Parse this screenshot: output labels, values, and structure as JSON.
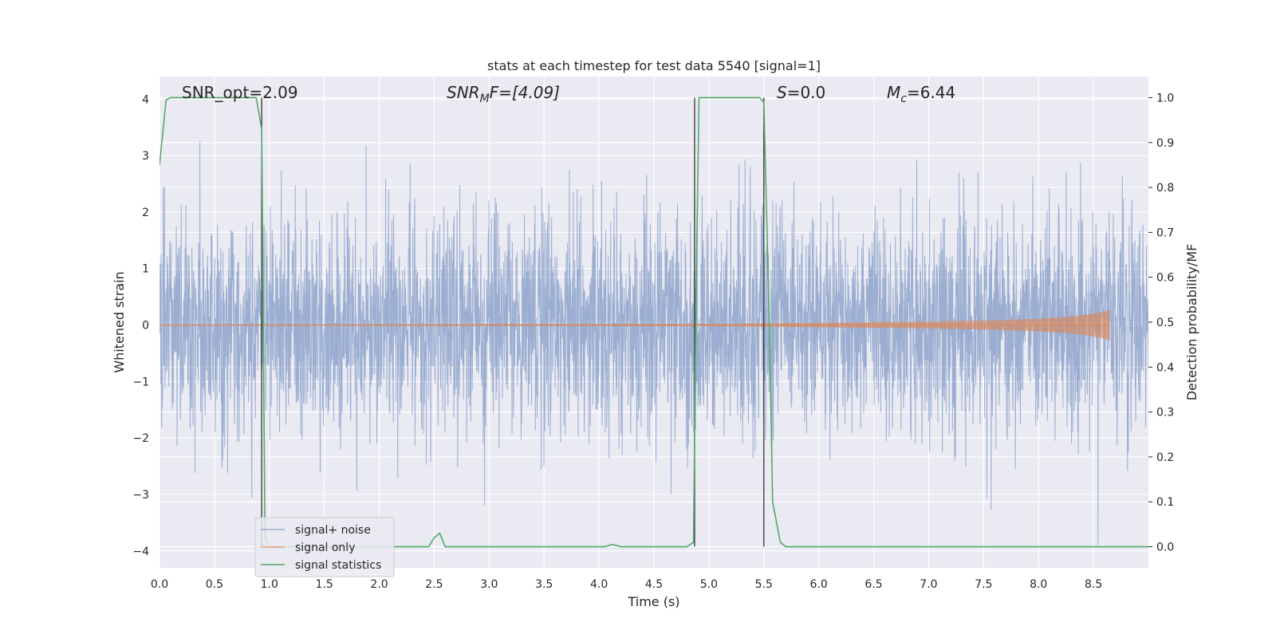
{
  "chart_data": {
    "type": "line",
    "title": "stats at each timestep for test data 5540 [signal=1]",
    "xlabel": "Time (s)",
    "ylabel": "Whitened strain",
    "ylabel_right": "Detection probability/MF",
    "xlim": [
      0,
      9.0
    ],
    "ylim": [
      -4.3,
      4.4
    ],
    "ylim_right": [
      -0.047,
      1.047
    ],
    "x_ticks": [
      "0.0",
      "0.5",
      "1.0",
      "1.5",
      "2.0",
      "2.5",
      "3.0",
      "3.5",
      "4.0",
      "4.5",
      "5.0",
      "5.5",
      "6.0",
      "6.5",
      "7.0",
      "7.5",
      "8.0",
      "8.5"
    ],
    "y_ticks": [
      "−4",
      "−3",
      "−2",
      "−1",
      "0",
      "1",
      "2",
      "3",
      "4"
    ],
    "y_ticks_right": [
      "0.0",
      "0.1",
      "0.2",
      "0.3",
      "0.4",
      "0.5",
      "0.6",
      "0.7",
      "0.8",
      "0.9",
      "1.0"
    ],
    "grid": true,
    "legend": {
      "position": "lower-left",
      "entries": [
        "signal+ noise",
        "signal only",
        "signal statistics"
      ]
    },
    "colors": {
      "signal_noise": "#4c72b0",
      "signal_only": "#dd8452",
      "signal_statistics": "#55a868",
      "vlines": "#333333",
      "plot_bg": "#eaeaf2",
      "grid": "#ffffff"
    },
    "annotations": {
      "snr_opt": "SNR_opt=2.09",
      "snr_mf_base": "SNR",
      "snr_mf_sub": "M",
      "snr_mf_rest": "F=[4.09]",
      "s_label_italic": "S",
      "s_label_rest": "=0.0",
      "mc_base": "M",
      "mc_sub": "c",
      "mc_rest": "=6.44"
    },
    "series": [
      {
        "name": "signal+ noise",
        "axis": "left",
        "description_envelope": {
          "typical_amplitude": 1.6,
          "max_peak": 3.6,
          "min_trough": -3.9
        }
      },
      {
        "name": "signal only",
        "axis": "left",
        "x": [
          0,
          5.0,
          6.0,
          7.0,
          7.5,
          8.0,
          8.3,
          8.5,
          8.6,
          8.65
        ],
        "envelope": [
          0.01,
          0.02,
          0.04,
          0.06,
          0.08,
          0.11,
          0.15,
          0.2,
          0.24,
          0.28
        ]
      },
      {
        "name": "signal statistics",
        "axis": "right",
        "x": [
          0.0,
          0.06,
          0.1,
          0.2,
          0.5,
          0.88,
          0.93,
          0.96,
          1.0,
          1.04,
          2.0,
          2.45,
          2.5,
          2.55,
          2.6,
          2.65,
          4.05,
          4.12,
          4.2,
          4.8,
          4.86,
          4.88,
          4.91,
          4.94,
          5.46,
          5.5,
          5.55,
          5.58,
          5.65,
          5.7,
          6.5,
          7.0,
          9.0
        ],
        "y": [
          0.85,
          0.995,
          1.0,
          1.0,
          1.0,
          1.0,
          0.93,
          0.02,
          0.0,
          0.0,
          0.0,
          0.0,
          0.02,
          0.03,
          0.0,
          0.0,
          0.0,
          0.005,
          0.0,
          0.0,
          0.01,
          0.5,
          1.0,
          1.0,
          1.0,
          0.99,
          0.5,
          0.1,
          0.01,
          0.0,
          0.0,
          0.0,
          0.0
        ]
      }
    ],
    "vertical_lines_x": [
      0.93,
      4.87,
      5.5
    ]
  }
}
